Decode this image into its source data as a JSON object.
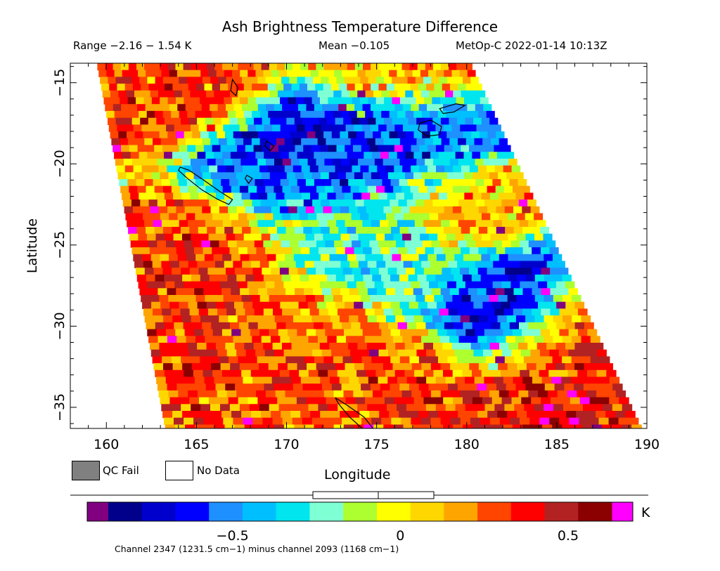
{
  "header": {
    "title": "Ash Brightness Temperature Difference",
    "range_text": "Range −2.16 − 1.54 K",
    "mean_text": "Mean −0.105",
    "satellite_time": "MetOp-C 2022-01-14 10:13Z"
  },
  "legend": {
    "qc_fail_label": "QC Fail",
    "no_data_label": "No Data",
    "qc_fail_color": "#808080",
    "no_data_color": "#ffffff"
  },
  "colorbar": {
    "unit": "K",
    "tick_labels": [
      "−0.5",
      "0",
      "0.5"
    ],
    "tick_values": [
      -0.5,
      0,
      0.5
    ],
    "range": [
      -0.87,
      0.63
    ],
    "under_color": "#800080",
    "over_color": "#ff00ff",
    "colors": [
      "#00008b",
      "#0000cd",
      "#0000ff",
      "#1e90ff",
      "#00bfff",
      "#00e5ee",
      "#7fffd4",
      "#adff2f",
      "#ffff00",
      "#ffd700",
      "#ffa500",
      "#ff4500",
      "#ff0000",
      "#b22222",
      "#8b0000"
    ]
  },
  "footnote": "Channel 2347 (1231.5 cm−1) minus channel 2093 (1168 cm−1)",
  "chart_data": {
    "type": "heatmap",
    "title": "Ash Brightness Temperature Difference",
    "xlabel": "Longitude",
    "ylabel": "Latitude",
    "xlim": [
      158,
      190
    ],
    "ylim": [
      -36.3,
      -13.8
    ],
    "x_ticks": [
      160,
      165,
      170,
      175,
      180,
      185,
      190
    ],
    "y_ticks": [
      -15,
      -20,
      -25,
      -30,
      -35
    ],
    "x_tick_labels": [
      "160",
      "165",
      "170",
      "175",
      "180",
      "185",
      "190"
    ],
    "y_tick_labels": [
      "−15",
      "−20",
      "−25",
      "−30",
      "−35"
    ],
    "value_range": [
      -2.16,
      1.54
    ],
    "mean": -0.105,
    "units": "K",
    "swath_edges": {
      "top": {
        "west_lon": 159.5,
        "east_lon": 180.3,
        "lat": -13.8
      },
      "bottom": {
        "west_lon": 163.3,
        "east_lon": 189.8,
        "lat": -36.3
      }
    },
    "regions": [
      {
        "lon": 172.5,
        "lat": -18.5,
        "value": -0.75
      },
      {
        "lon": 169.0,
        "lat": -20.5,
        "value": -0.65
      },
      {
        "lon": 177.0,
        "lat": -18.0,
        "value": -0.7
      },
      {
        "lon": 174.0,
        "lat": -21.0,
        "value": -0.5
      },
      {
        "lon": 182.5,
        "lat": -28.5,
        "value": -0.8
      },
      {
        "lon": 172.0,
        "lat": -24.0,
        "value": -0.2
      },
      {
        "lon": 176.0,
        "lat": -26.0,
        "value": -0.25
      },
      {
        "lon": 166.0,
        "lat": -24.5,
        "value": 0.35
      },
      {
        "lon": 164.0,
        "lat": -33.0,
        "value": 0.3
      },
      {
        "lon": 171.0,
        "lat": -31.0,
        "value": 0.25
      },
      {
        "lon": 186.0,
        "lat": -30.0,
        "value": 0.5
      },
      {
        "lon": 185.0,
        "lat": -34.0,
        "value": 0.4
      },
      {
        "lon": 176.0,
        "lat": -34.0,
        "value": 0.3
      },
      {
        "lon": 179.0,
        "lat": -22.5,
        "value": 0.2
      },
      {
        "lon": 164.0,
        "lat": -15.0,
        "value": 0.3
      },
      {
        "lon": 176.0,
        "lat": -14.5,
        "value": 0.3
      }
    ],
    "coastlines": [
      {
        "name": "new-caledonia",
        "points": [
          [
            164.1,
            -20.2
          ],
          [
            164.6,
            -20.4
          ],
          [
            165.4,
            -21.0
          ],
          [
            166.3,
            -21.7
          ],
          [
            167.0,
            -22.2
          ],
          [
            166.8,
            -22.5
          ],
          [
            166.2,
            -22.2
          ],
          [
            165.3,
            -21.6
          ],
          [
            164.5,
            -20.9
          ],
          [
            164.0,
            -20.4
          ]
        ]
      },
      {
        "name": "vanuatu-south",
        "points": [
          [
            168.9,
            -18.6
          ],
          [
            169.3,
            -18.9
          ],
          [
            169.1,
            -19.2
          ],
          [
            168.8,
            -18.9
          ]
        ]
      },
      {
        "name": "vanuatu-north",
        "points": [
          [
            167.0,
            -14.8
          ],
          [
            167.3,
            -15.3
          ],
          [
            167.2,
            -15.8
          ],
          [
            166.9,
            -15.5
          ]
        ]
      },
      {
        "name": "fiji-viti-levu",
        "points": [
          [
            177.4,
            -17.5
          ],
          [
            178.0,
            -17.3
          ],
          [
            178.6,
            -17.7
          ],
          [
            178.5,
            -18.2
          ],
          [
            177.8,
            -18.3
          ],
          [
            177.3,
            -17.9
          ]
        ]
      },
      {
        "name": "fiji-vanua-levu",
        "points": [
          [
            178.5,
            -16.6
          ],
          [
            179.4,
            -16.3
          ],
          [
            179.9,
            -16.4
          ],
          [
            179.3,
            -16.8
          ],
          [
            178.7,
            -16.9
          ]
        ]
      },
      {
        "name": "new-zealand-north",
        "points": [
          [
            172.7,
            -34.4
          ],
          [
            173.4,
            -34.9
          ],
          [
            174.3,
            -35.6
          ],
          [
            174.8,
            -36.3
          ],
          [
            174.2,
            -36.3
          ],
          [
            173.5,
            -35.6
          ],
          [
            172.9,
            -34.8
          ]
        ]
      },
      {
        "name": "loyalty-islands",
        "points": [
          [
            167.8,
            -20.7
          ],
          [
            168.1,
            -20.9
          ],
          [
            167.9,
            -21.2
          ],
          [
            167.7,
            -20.9
          ]
        ]
      }
    ]
  }
}
